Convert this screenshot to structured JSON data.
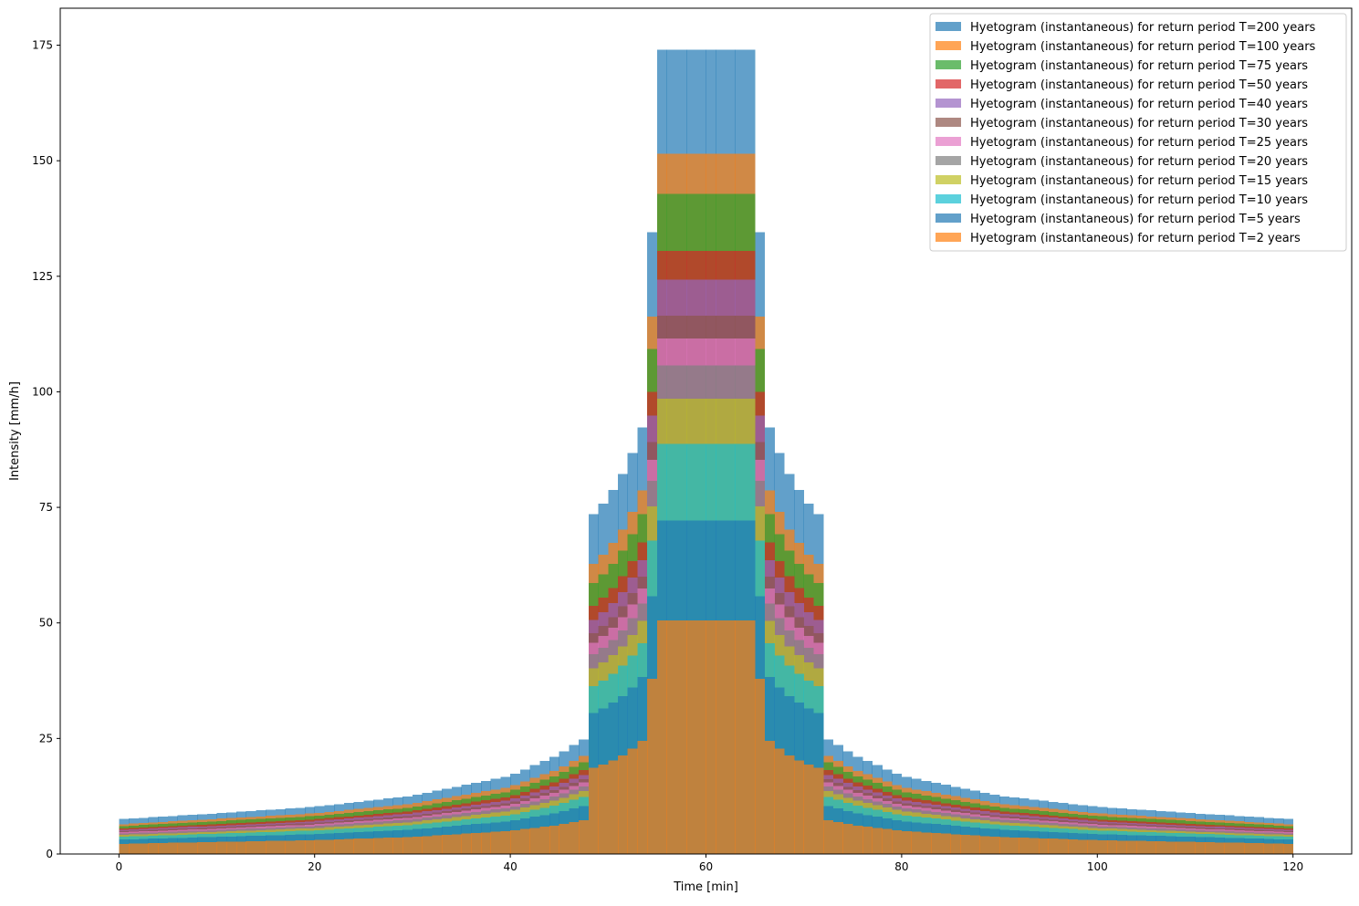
{
  "chart_data": {
    "type": "bar",
    "xlabel": "Time [min]",
    "ylabel": "Intensity [mm/h]",
    "xlim": [
      -6,
      126
    ],
    "ylim": [
      0,
      183
    ],
    "xticks": [
      0,
      20,
      40,
      60,
      80,
      100,
      120
    ],
    "yticks": [
      0,
      25,
      50,
      75,
      100,
      125,
      150,
      175
    ],
    "grid": false,
    "legend_position": "top-right",
    "bar_width_min": 1,
    "bar_alpha": 0.7,
    "profile_shape": {
      "description": "alternating-block hyetograph; values per series at sampled times, symmetric about t=60",
      "time_points": [
        0,
        10,
        20,
        30,
        40,
        45,
        47.4,
        47.6,
        50,
        52,
        54,
        55,
        65,
        66,
        68,
        70,
        72.4,
        72.6,
        75,
        80,
        90,
        100,
        110,
        120
      ]
    },
    "series": [
      {
        "name": "Hyetogram (instantaneous) for return period T=200 years",
        "color": "#1f77b4",
        "values": [
          7.5,
          8.8,
          10.2,
          12.6,
          16.9,
          21.5,
          24.8,
          71.5,
          77,
          84,
          95,
          174,
          101,
          95,
          84,
          77,
          71.5,
          24.8,
          21.5,
          16.9,
          12.6,
          10.2,
          8.8,
          7.5
        ]
      },
      {
        "name": "Hyetogram (instantaneous) for return period T=100 years",
        "color": "#ff7f0e",
        "values": [
          6.4,
          7.6,
          8.8,
          10.9,
          14.5,
          18.4,
          21.2,
          60.9,
          65.8,
          71.7,
          81,
          151.5,
          86.1,
          81,
          71.7,
          65.8,
          60.9,
          21.2,
          18.4,
          14.5,
          10.9,
          8.8,
          7.6,
          6.4
        ]
      },
      {
        "name": "Hyetogram (instantaneous) for return period T=75 years",
        "color": "#2ca02c",
        "values": [
          6,
          7.1,
          8.2,
          10.1,
          13.5,
          17.2,
          19.8,
          56.9,
          61.4,
          67,
          75.7,
          142.8,
          80.5,
          75.7,
          67,
          61.4,
          56.9,
          19.8,
          17.2,
          13.5,
          10.1,
          8.2,
          7.1,
          6
        ]
      },
      {
        "name": "Hyetogram (instantaneous) for return period T=50 years",
        "color": "#d62728",
        "values": [
          5.5,
          6.5,
          7.5,
          9.3,
          12.4,
          15.8,
          18.2,
          52.1,
          56.3,
          61.4,
          69.4,
          130.5,
          73.8,
          69.4,
          61.4,
          56.3,
          52.1,
          18.2,
          15.8,
          12.4,
          9.3,
          7.5,
          6.5,
          5.5
        ]
      },
      {
        "name": "Hyetogram (instantaneous) for return period T=40 years",
        "color": "#9467bd",
        "values": [
          5.2,
          6.1,
          7.1,
          8.8,
          11.7,
          14.9,
          17.1,
          49.2,
          53.1,
          57.9,
          65.4,
          124.3,
          69.6,
          65.4,
          57.9,
          53.1,
          49.2,
          17.1,
          14.9,
          11.7,
          8.8,
          7.1,
          6.1,
          5.2
        ]
      },
      {
        "name": "Hyetogram (instantaneous) for return period T=30 years",
        "color": "#8c564b",
        "values": [
          4.9,
          5.8,
          6.7,
          8.3,
          11.1,
          14.1,
          16.2,
          46.4,
          50.1,
          54.7,
          61.8,
          116.5,
          65.7,
          61.8,
          54.7,
          50.1,
          46.4,
          16.2,
          14.1,
          11.1,
          8.3,
          6.7,
          5.8,
          4.9
        ]
      },
      {
        "name": "Hyetogram (instantaneous) for return period T=25 years",
        "color": "#e377c2",
        "values": [
          4.7,
          5.5,
          6.4,
          7.9,
          10.6,
          13.5,
          15.5,
          44.4,
          47.9,
          52.3,
          59.1,
          111.5,
          62.9,
          59.1,
          52.3,
          47.9,
          44.4,
          15.5,
          13.5,
          10.6,
          7.9,
          6.4,
          5.5,
          4.7
        ]
      },
      {
        "name": "Hyetogram (instantaneous) for return period T=20 years",
        "color": "#7f7f7f",
        "values": [
          4.4,
          5.2,
          6,
          7.5,
          10,
          12.7,
          14.6,
          42,
          45.3,
          49.4,
          55.8,
          105.7,
          59.4,
          55.8,
          49.4,
          45.3,
          42,
          14.6,
          12.7,
          10,
          7.5,
          6,
          5.2,
          4.4
        ]
      },
      {
        "name": "Hyetogram (instantaneous) for return period T=15 years",
        "color": "#bcbd22",
        "values": [
          4.1,
          4.8,
          5.6,
          6.9,
          9.3,
          11.8,
          13.6,
          39,
          42.1,
          45.9,
          51.9,
          98.5,
          55.2,
          51.9,
          45.9,
          42.1,
          39,
          13.6,
          11.8,
          9.3,
          6.9,
          5.6,
          4.8,
          4.1
        ]
      },
      {
        "name": "Hyetogram (instantaneous) for return period T=10 years",
        "color": "#17becf",
        "values": [
          3.7,
          4.4,
          5.1,
          6.3,
          8.4,
          10.7,
          12.3,
          35.3,
          38.1,
          41.6,
          47,
          88.7,
          50,
          47,
          41.6,
          38.1,
          35.3,
          12.3,
          10.7,
          8.4,
          6.3,
          5.1,
          4.4,
          3.7
        ]
      },
      {
        "name": "Hyetogram (instantaneous) for return period T=5 years",
        "color": "#1f77b4",
        "values": [
          3.1,
          3.7,
          4.3,
          5.3,
          7.1,
          9,
          10.4,
          29.6,
          32,
          34.9,
          39.4,
          72.2,
          41.9,
          39.4,
          34.9,
          32,
          29.6,
          10.4,
          9,
          7.1,
          5.3,
          4.3,
          3.7,
          3.1
        ]
      },
      {
        "name": "Hyetogram (instantaneous) for return period T=2 years",
        "color": "#ff7f0e",
        "values": [
          2.2,
          2.6,
          3,
          3.7,
          5,
          6.3,
          7.3,
          18,
          19.7,
          21.9,
          25.4,
          50.5,
          26.2,
          25.4,
          21.9,
          19.7,
          18,
          7.3,
          6.3,
          5,
          3.7,
          3,
          2.6,
          2.2
        ]
      }
    ]
  }
}
